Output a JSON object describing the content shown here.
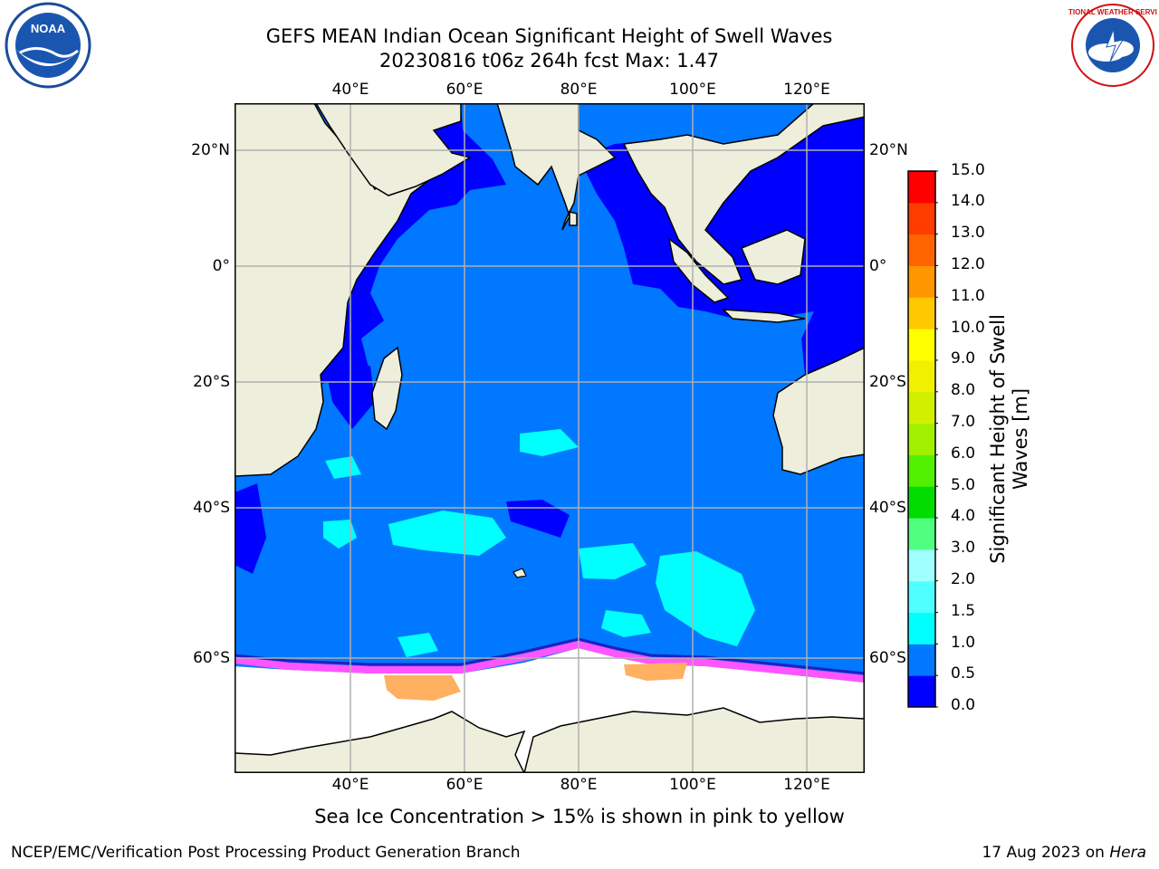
{
  "title": {
    "line1": "GEFS MEAN Indian Ocean Significant Height of Swell Waves",
    "line2": "20230816 t06z 264h fcst   Max: 1.47"
  },
  "map": {
    "lon_labels": [
      "40°E",
      "60°E",
      "80°E",
      "100°E",
      "120°E"
    ],
    "lat_labels": [
      "20°N",
      "0°",
      "20°S",
      "40°S",
      "60°S"
    ],
    "lon_range": [
      20,
      130
    ],
    "lat_range": [
      -76,
      28
    ],
    "colors": {
      "land": "#eeeedc",
      "ocean_low": "#0000ff",
      "ocean_mid": "#0078ff",
      "ocean_high": "#00ffff",
      "ice_pink": "#ff55ff",
      "ice_orange": "#ffb060",
      "ice_free": "#ffffff",
      "grid": "#b0b0b0"
    }
  },
  "colorbar": {
    "title_line1": "Significant Height of Swell",
    "title_line2": "Waves [m]",
    "ticks": [
      "0.0",
      "0.5",
      "1.0",
      "1.5",
      "2.0",
      "3.0",
      "4.0",
      "5.0",
      "6.0",
      "7.0",
      "8.0",
      "9.0",
      "10.0",
      "11.0",
      "12.0",
      "13.0",
      "14.0",
      "15.0"
    ],
    "colors": [
      "#0000ff",
      "#0078ff",
      "#00ffff",
      "#50ffff",
      "#a0ffff",
      "#50ff80",
      "#00dc00",
      "#50f000",
      "#a0f000",
      "#d0f000",
      "#f0f000",
      "#ffff00",
      "#ffc800",
      "#ff9600",
      "#ff6400",
      "#ff3c00",
      "#ff0000"
    ]
  },
  "note": "Sea Ice Concentration > 15% is shown in pink to yellow",
  "footer": {
    "left": "NCEP/EMC/Verification Post Processing Product Generation Branch",
    "date": "17 Aug 2023 on ",
    "host": "Hera"
  },
  "logos": {
    "noaa_text": "NOAA",
    "nws_text": "NATIONAL WEATHER SERVICE"
  }
}
